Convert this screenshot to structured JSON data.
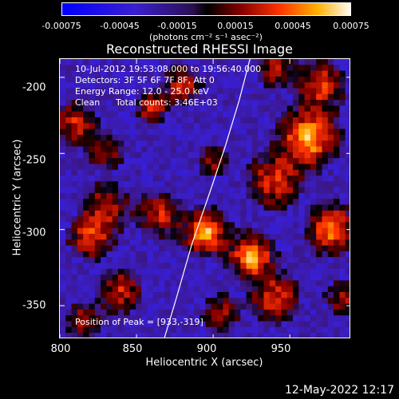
{
  "colorbar": {
    "tick_labels": [
      "-0.00075",
      "-0.00045",
      "-0.00015",
      "0.00015",
      "0.00045",
      "0.00075"
    ],
    "unit_label": "(photons cm⁻² s⁻¹ asec⁻²)",
    "min": -0.00075,
    "max": 0.00075
  },
  "title": "Reconstructed RHESSI Image",
  "info": {
    "time_range": "10-Jul-2012 19:53:08.000 to 19:56:40.000",
    "detectors": "Detectors: 3F 5F 6F 7F 8F, Att 0",
    "energy": "Energy Range: 12.0 - 25.0 keV",
    "clean_label": "Clean",
    "total_counts": "Total counts: 3.46E+03",
    "peak": "Position of Peak = [933,-319]"
  },
  "timestamp": "12-May-2022 12:17",
  "chart_data": {
    "type": "heatmap",
    "title": "Reconstructed RHESSI Image",
    "xlabel": "Heliocentric X (arcsec)",
    "ylabel": "Heliocentric Y (arcsec)",
    "xlim": [
      800,
      990
    ],
    "ylim": [
      -372,
      -188
    ],
    "x_ticks": [
      800,
      850,
      900,
      950
    ],
    "y_ticks": [
      -200,
      -250,
      -300,
      -350
    ],
    "x_tick_labels": [
      "800",
      "850",
      "900",
      "950"
    ],
    "y_tick_labels": [
      "-200",
      "-250",
      "-300",
      "-350"
    ],
    "peak_position": [
      933,
      -319
    ],
    "color_scale": "blue-black-red-yellow-white",
    "limb_curve": [
      [
        868,
        -372
      ],
      [
        876,
        -345
      ],
      [
        886,
        -310
      ],
      [
        898,
        -275
      ],
      [
        908,
        -245
      ],
      [
        917,
        -215
      ],
      [
        924,
        -188
      ]
    ],
    "hot_regions": [
      {
        "x": 895,
        "y": -302,
        "intensity": 1.0,
        "sigma": 9
      },
      {
        "x": 925,
        "y": -318,
        "intensity": 1.0,
        "sigma": 9
      },
      {
        "x": 962,
        "y": -240,
        "intensity": 1.0,
        "sigma": 12
      },
      {
        "x": 978,
        "y": -300,
        "intensity": 0.9,
        "sigma": 10
      },
      {
        "x": 940,
        "y": -268,
        "intensity": 0.7,
        "sigma": 11
      },
      {
        "x": 940,
        "y": -345,
        "intensity": 0.7,
        "sigma": 10
      },
      {
        "x": 970,
        "y": -205,
        "intensity": 0.7,
        "sigma": 10
      },
      {
        "x": 865,
        "y": -290,
        "intensity": 0.6,
        "sigma": 9
      },
      {
        "x": 830,
        "y": -285,
        "intensity": 0.6,
        "sigma": 10
      },
      {
        "x": 820,
        "y": -305,
        "intensity": 0.7,
        "sigma": 9
      },
      {
        "x": 810,
        "y": -230,
        "intensity": 0.6,
        "sigma": 9
      },
      {
        "x": 830,
        "y": -248,
        "intensity": 0.5,
        "sigma": 8
      },
      {
        "x": 840,
        "y": -340,
        "intensity": 0.6,
        "sigma": 9
      },
      {
        "x": 815,
        "y": -360,
        "intensity": 0.5,
        "sigma": 8
      },
      {
        "x": 905,
        "y": -355,
        "intensity": 0.5,
        "sigma": 8
      },
      {
        "x": 900,
        "y": -255,
        "intensity": 0.5,
        "sigma": 7
      },
      {
        "x": 880,
        "y": -205,
        "intensity": 0.6,
        "sigma": 8
      },
      {
        "x": 860,
        "y": -220,
        "intensity": 0.7,
        "sigma": 6
      },
      {
        "x": 940,
        "y": -195,
        "intensity": 0.5,
        "sigma": 8
      },
      {
        "x": 985,
        "y": -345,
        "intensity": 0.5,
        "sigma": 8
      }
    ]
  }
}
